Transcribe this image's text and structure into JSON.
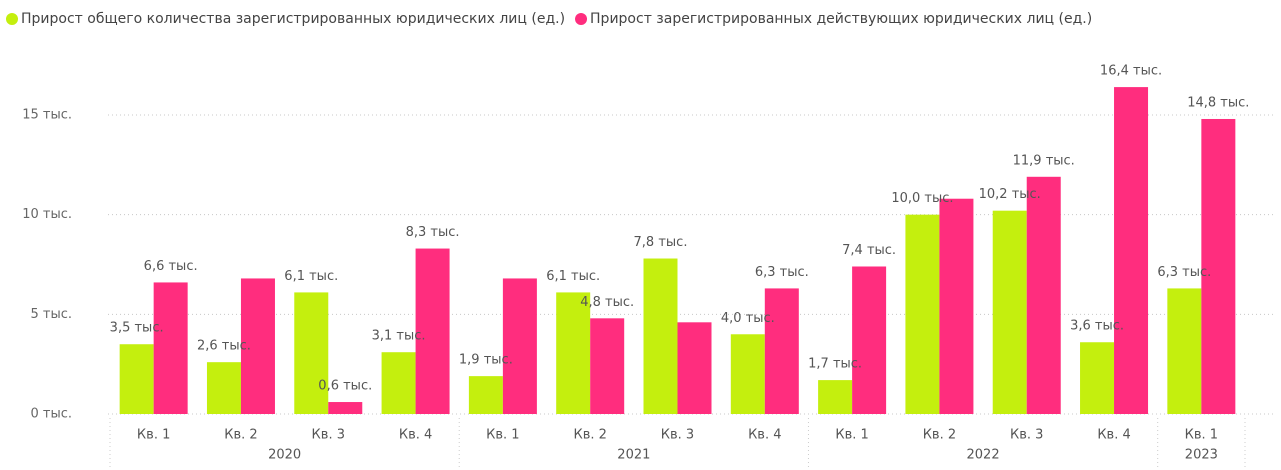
{
  "chart_data": {
    "type": "bar",
    "categories": [
      "Кв. 1",
      "Кв. 2",
      "Кв. 3",
      "Кв. 4",
      "Кв. 1",
      "Кв. 2",
      "Кв. 3",
      "Кв. 4",
      "Кв. 1",
      "Кв. 2",
      "Кв. 3",
      "Кв. 4",
      "Кв. 1"
    ],
    "category_groups": [
      "2020",
      "2020",
      "2020",
      "2020",
      "2021",
      "2021",
      "2021",
      "2021",
      "2022",
      "2022",
      "2022",
      "2022",
      "2023"
    ],
    "series": [
      {
        "name": "Прирост общего количества зарегистрированных юридических лиц (ед.)",
        "color": "#c4ef0e",
        "values": [
          3500,
          2600,
          6100,
          3100,
          1900,
          6100,
          7800,
          4000,
          1700,
          10000,
          10200,
          3600,
          6300
        ],
        "value_labels": [
          "3,5 тыс.",
          "2,6 тыс.",
          "6,1 тыс.",
          "3,1 тыс.",
          "1,9 тыс.",
          "6,1 тыс.",
          "7,8 тыс.",
          "4,0 тыс.",
          "1,7 тыс.",
          "10,0 тыс.",
          "10,2 тыс.",
          "3,6 тыс.",
          "6,3 тыс."
        ]
      },
      {
        "name": "Прирост зарегистрированных действующих юридических лиц (ед.)",
        "color": "#ff2d7e",
        "values": [
          6600,
          6800,
          600,
          8300,
          6800,
          4800,
          4600,
          6300,
          7400,
          10800,
          11900,
          16400,
          14800
        ],
        "value_labels": [
          "6,6 тыс.",
          null,
          "0,6 тыс.",
          "8,3 тыс.",
          null,
          "4,8 тыс.",
          null,
          "6,3 тыс.",
          "7,4 тыс.",
          null,
          "11,9 тыс.",
          "16,4 тыс.",
          "14,8 тыс."
        ]
      }
    ],
    "ylim": [
      0,
      17000
    ],
    "yticks": [
      {
        "value": 0,
        "label": "0 тыс."
      },
      {
        "value": 5000,
        "label": "5 тыс."
      },
      {
        "value": 10000,
        "label": "10 тыс."
      },
      {
        "value": 15000,
        "label": "15 тыс."
      }
    ],
    "grid": true,
    "legend": "top-left"
  }
}
